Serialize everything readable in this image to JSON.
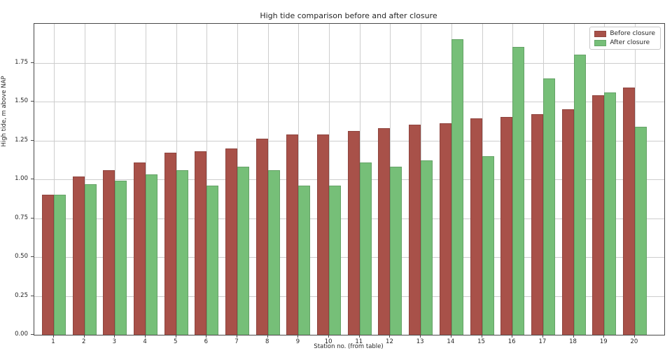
{
  "figure": {
    "background": "#ffffff",
    "frame_color": "#494949",
    "grid_color": "#cdcdcd",
    "text_color": "#262626"
  },
  "chart_data": {
    "type": "bar",
    "title": "High tide comparison before and after closure",
    "xlabel": "Station no. (from table)",
    "ylabel": "High tide, m above NAP",
    "categories": [
      "1",
      "2",
      "3",
      "4",
      "5",
      "6",
      "7",
      "8",
      "9",
      "10",
      "11",
      "12",
      "13",
      "14",
      "15",
      "16",
      "17",
      "18",
      "19",
      "20"
    ],
    "series": [
      {
        "name": "Before closure",
        "color": "#a85149",
        "values": [
          0.9,
          1.02,
          1.06,
          1.11,
          1.17,
          1.18,
          1.2,
          1.26,
          1.29,
          1.29,
          1.31,
          1.33,
          1.35,
          1.36,
          1.39,
          1.4,
          1.42,
          1.45,
          1.54,
          1.59
        ]
      },
      {
        "name": "After closure",
        "color": "#76bf78",
        "values": [
          0.9,
          0.97,
          0.99,
          1.03,
          1.06,
          0.96,
          1.08,
          1.06,
          0.96,
          0.96,
          1.11,
          1.08,
          1.12,
          1.9,
          1.15,
          1.85,
          1.65,
          1.8,
          1.56,
          1.34
        ]
      }
    ],
    "ylim": [
      0,
      2.0
    ],
    "yticks": [
      0.0,
      0.25,
      0.5,
      0.75,
      1.0,
      1.25,
      1.5,
      1.75
    ],
    "ytick_labels": [
      "0.00",
      "0.25",
      "0.50",
      "0.75",
      "1.00",
      "1.25",
      "1.50",
      "1.75"
    ],
    "grid": true,
    "legend_position": "upper right"
  }
}
